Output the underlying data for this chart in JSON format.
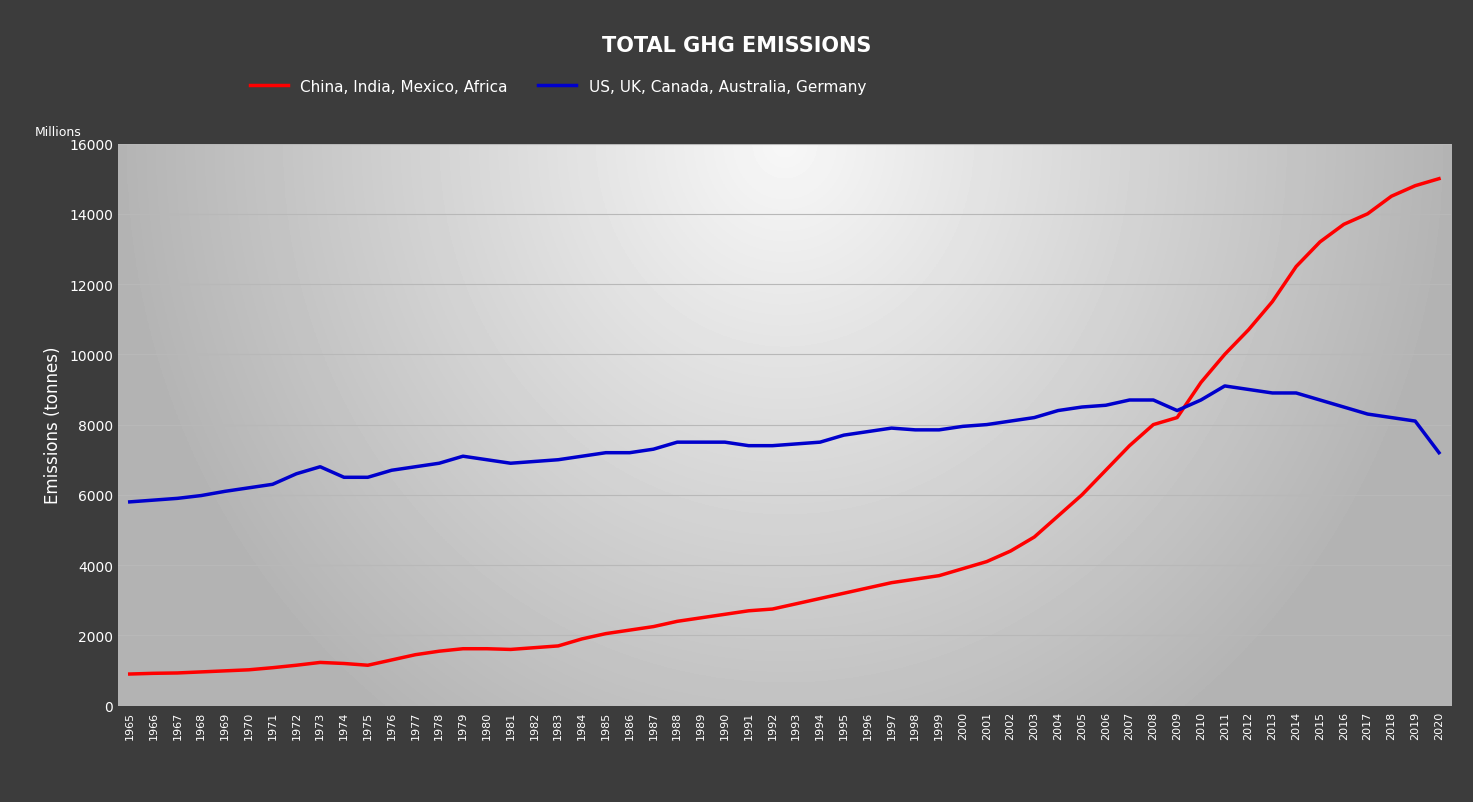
{
  "title": "TOTAL GHG EMISSIONS",
  "ylabel": "Emissions (tonnes)",
  "ylabel_millions": "Millions",
  "legend_red": "China, India, Mexico, Africa",
  "legend_blue": "US, UK, Canada, Australia, Germany",
  "line_color_red": "#ff0000",
  "line_color_blue": "#0000cc",
  "background_outer": "#3c3c3c",
  "text_color": "#ffffff",
  "grid_color": "#b8b8b8",
  "ylim": [
    0,
    16000
  ],
  "years": [
    1965,
    1966,
    1967,
    1968,
    1969,
    1970,
    1971,
    1972,
    1973,
    1974,
    1975,
    1976,
    1977,
    1978,
    1979,
    1980,
    1981,
    1982,
    1983,
    1984,
    1985,
    1986,
    1987,
    1988,
    1989,
    1990,
    1991,
    1992,
    1993,
    1994,
    1995,
    1996,
    1997,
    1998,
    1999,
    2000,
    2001,
    2002,
    2003,
    2004,
    2005,
    2006,
    2007,
    2008,
    2009,
    2010,
    2011,
    2012,
    2013,
    2014,
    2015,
    2016,
    2017,
    2018,
    2019,
    2020
  ],
  "red_values": [
    900,
    920,
    930,
    960,
    990,
    1020,
    1080,
    1150,
    1230,
    1200,
    1150,
    1300,
    1450,
    1550,
    1620,
    1620,
    1600,
    1650,
    1700,
    1900,
    2050,
    2150,
    2250,
    2400,
    2500,
    2600,
    2700,
    2750,
    2900,
    3050,
    3200,
    3350,
    3500,
    3600,
    3700,
    3900,
    4100,
    4400,
    4800,
    5400,
    6000,
    6700,
    7400,
    8000,
    8200,
    9200,
    10000,
    10700,
    11500,
    12500,
    13200,
    13700,
    14000,
    14500,
    14800,
    15000
  ],
  "blue_values": [
    5800,
    5850,
    5900,
    5980,
    6100,
    6200,
    6300,
    6600,
    6800,
    6500,
    6500,
    6700,
    6800,
    6900,
    7100,
    7000,
    6900,
    6950,
    7000,
    7100,
    7200,
    7200,
    7300,
    7500,
    7500,
    7500,
    7400,
    7400,
    7450,
    7500,
    7700,
    7800,
    7900,
    7850,
    7850,
    7950,
    8000,
    8100,
    8200,
    8400,
    8500,
    8550,
    8700,
    8700,
    8400,
    8700,
    9100,
    9000,
    8900,
    8900,
    8700,
    8500,
    8300,
    8200,
    8100,
    7200
  ]
}
